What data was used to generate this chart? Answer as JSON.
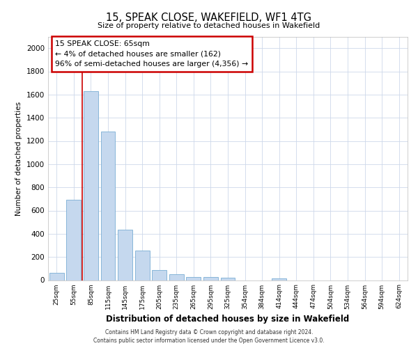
{
  "title": "15, SPEAK CLOSE, WAKEFIELD, WF1 4TG",
  "subtitle": "Size of property relative to detached houses in Wakefield",
  "xlabel": "Distribution of detached houses by size in Wakefield",
  "ylabel": "Number of detached properties",
  "categories": [
    "25sqm",
    "55sqm",
    "85sqm",
    "115sqm",
    "145sqm",
    "175sqm",
    "205sqm",
    "235sqm",
    "265sqm",
    "295sqm",
    "325sqm",
    "354sqm",
    "384sqm",
    "414sqm",
    "444sqm",
    "474sqm",
    "504sqm",
    "534sqm",
    "564sqm",
    "594sqm",
    "624sqm"
  ],
  "values": [
    65,
    695,
    1630,
    1280,
    435,
    255,
    88,
    53,
    30,
    25,
    22,
    0,
    0,
    18,
    0,
    0,
    0,
    0,
    0,
    0,
    0
  ],
  "bar_color": "#c5d8ee",
  "bar_edge_color": "#7aadd4",
  "red_line_x": 1.5,
  "annotation_text": "15 SPEAK CLOSE: 65sqm\n← 4% of detached houses are smaller (162)\n96% of semi-detached houses are larger (4,356) →",
  "annotation_box_color": "#ffffff",
  "annotation_box_edge_color": "#cc0000",
  "red_line_color": "#cc0000",
  "ylim": [
    0,
    2100
  ],
  "yticks": [
    0,
    200,
    400,
    600,
    800,
    1000,
    1200,
    1400,
    1600,
    1800,
    2000
  ],
  "footer_line1": "Contains HM Land Registry data © Crown copyright and database right 2024.",
  "footer_line2": "Contains public sector information licensed under the Open Government Licence v3.0.",
  "background_color": "#ffffff",
  "grid_color": "#cdd8ea"
}
